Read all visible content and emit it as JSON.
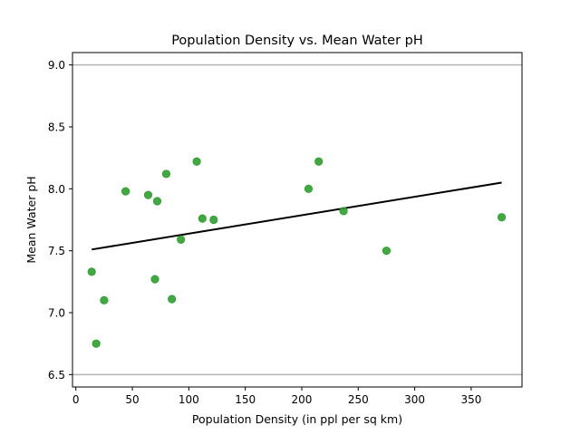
{
  "chart_data": {
    "type": "scatter",
    "title": "Population Density vs. Mean Water pH",
    "xlabel": "Population Density (in ppl per sq km)",
    "ylabel": "Mean Water pH",
    "xlim": [
      -3,
      395
    ],
    "ylim": [
      6.4,
      9.1
    ],
    "xticks": [
      0,
      50,
      100,
      150,
      200,
      250,
      300,
      350
    ],
    "yticks": [
      6.5,
      7.0,
      7.5,
      8.0,
      8.5,
      9.0
    ],
    "ytick_labels": [
      "6.5",
      "7.0",
      "7.5",
      "8.0",
      "8.5",
      "9.0"
    ],
    "hlines": [
      9.0,
      6.5
    ],
    "hline_color": "#b3b3b3",
    "grid": false,
    "point_color": "#2ca02c",
    "trend_color": "#000000",
    "points": [
      {
        "x": 14,
        "y": 7.33
      },
      {
        "x": 18,
        "y": 6.75
      },
      {
        "x": 25,
        "y": 7.1
      },
      {
        "x": 44,
        "y": 7.98
      },
      {
        "x": 64,
        "y": 7.95
      },
      {
        "x": 70,
        "y": 7.27
      },
      {
        "x": 72,
        "y": 7.9
      },
      {
        "x": 80,
        "y": 8.12
      },
      {
        "x": 85,
        "y": 7.11
      },
      {
        "x": 93,
        "y": 7.59
      },
      {
        "x": 107,
        "y": 8.22
      },
      {
        "x": 112,
        "y": 7.76
      },
      {
        "x": 122,
        "y": 7.75
      },
      {
        "x": 206,
        "y": 8.0
      },
      {
        "x": 215,
        "y": 8.22
      },
      {
        "x": 237,
        "y": 7.82
      },
      {
        "x": 275,
        "y": 7.5
      },
      {
        "x": 377,
        "y": 7.77
      }
    ],
    "trend_line": {
      "x": [
        14,
        377
      ],
      "y": [
        7.51,
        8.05
      ]
    }
  }
}
